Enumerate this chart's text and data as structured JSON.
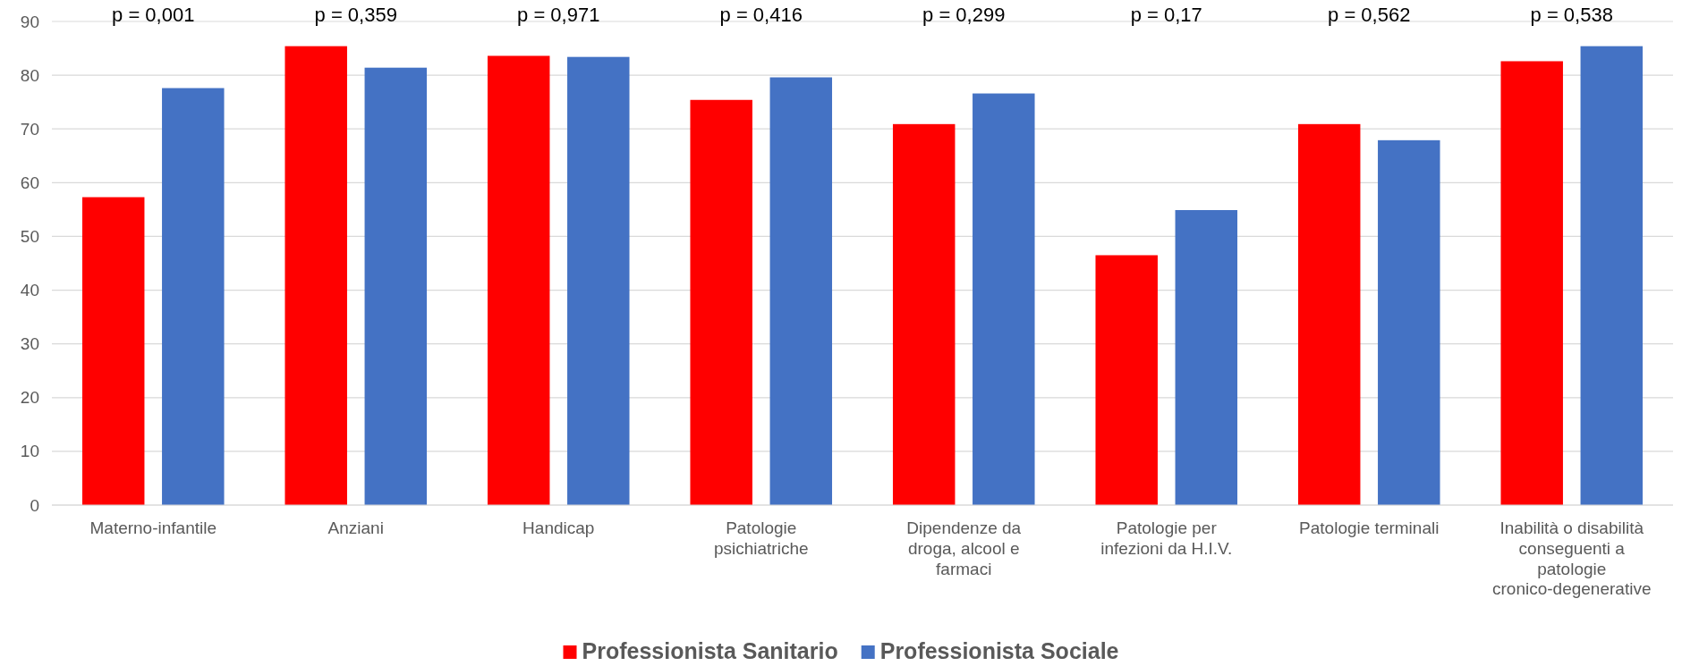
{
  "chart_data": {
    "type": "bar",
    "categories": [
      "Materno-infantile",
      "Anziani",
      "Handicap",
      "Patologie psichiatriche",
      "Dipendenze da droga, alcool e farmaci",
      "Patologie per infezioni da H.I.V.",
      "Patologie terminali",
      "Inabilità o disabilità conseguenti a patologie cronico-degenerative"
    ],
    "series": [
      {
        "name": "Professionista Sanitario",
        "color": "#ff0000",
        "values": [
          57.3,
          85.4,
          83.6,
          75.4,
          70.9,
          46.5,
          70.9,
          82.6
        ]
      },
      {
        "name": "Professionista Sociale",
        "color": "#4472c4",
        "values": [
          77.6,
          81.4,
          83.4,
          79.6,
          76.6,
          54.9,
          67.9,
          85.4
        ]
      }
    ],
    "ylim": [
      0,
      90
    ],
    "yticks": [
      0,
      10,
      20,
      30,
      40,
      50,
      60,
      70,
      80,
      90
    ],
    "grid": "y",
    "legend": "bottom",
    "annotations": [
      "p = 0,001",
      "p = 0,359",
      "p = 0,971",
      "p = 0,416",
      "p = 0,299",
      "p = 0,17",
      "p = 0,562",
      "p = 0,538"
    ]
  }
}
